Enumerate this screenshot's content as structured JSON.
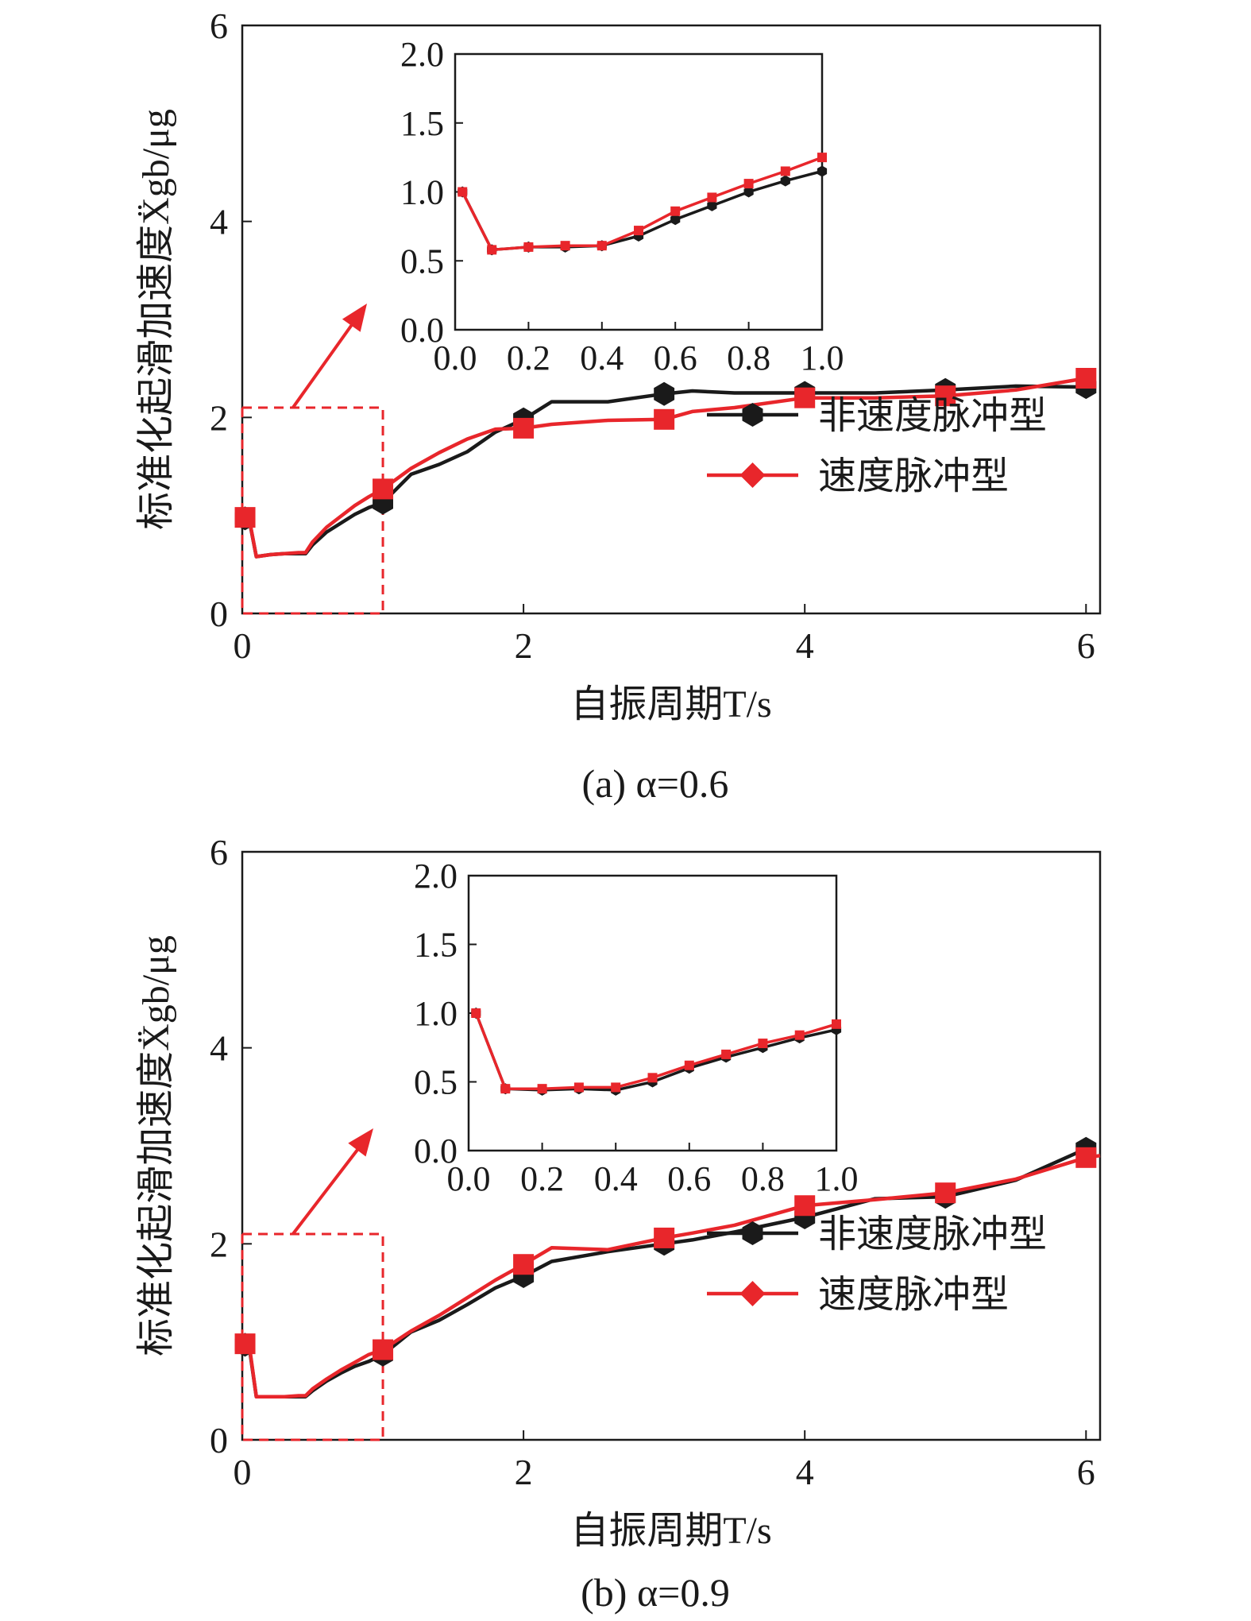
{
  "colors": {
    "nonpulse": "#1a1a1a",
    "pulse": "#e8262b",
    "frame": "#1a1a1a",
    "zoom": "#e8262b"
  },
  "chart_data": [
    {
      "type": "line",
      "caption": "(a) α=0.6",
      "xlabel": "自振周期T/s",
      "ylabel": "标准化起滑加速度Ẍgb/μg",
      "xlim": [
        0,
        6.1
      ],
      "ylim": [
        0,
        6
      ],
      "xticks": [
        "0",
        "2",
        "4",
        "6"
      ],
      "yticks": [
        "0",
        "2",
        "4",
        "6"
      ],
      "legend": {
        "position": "right-center",
        "entries": [
          "非速度脉冲型",
          "速度脉冲型"
        ]
      },
      "series": [
        {
          "name": "非速度脉冲型",
          "marker": "hexagon",
          "x": [
            0.02,
            0.05,
            0.1,
            0.2,
            0.3,
            0.4,
            0.45,
            0.5,
            0.6,
            0.7,
            0.8,
            0.9,
            1.0,
            1.2,
            1.4,
            1.6,
            1.8,
            2.0,
            2.2,
            2.6,
            3.0,
            3.2,
            3.5,
            4.0,
            4.5,
            5.0,
            5.5,
            6.0
          ],
          "y": [
            0.97,
            0.95,
            0.58,
            0.6,
            0.61,
            0.61,
            0.61,
            0.7,
            0.83,
            0.92,
            1.01,
            1.08,
            1.13,
            1.42,
            1.52,
            1.65,
            1.85,
            1.98,
            2.16,
            2.16,
            2.24,
            2.27,
            2.25,
            2.25,
            2.25,
            2.28,
            2.32,
            2.31
          ],
          "markers_x": [
            0.02,
            1.0,
            2.0,
            3.0,
            4.0,
            5.0,
            6.0
          ]
        },
        {
          "name": "速度脉冲型",
          "marker": "square",
          "x": [
            0.02,
            0.05,
            0.1,
            0.2,
            0.3,
            0.4,
            0.45,
            0.5,
            0.6,
            0.7,
            0.8,
            0.9,
            1.0,
            1.2,
            1.4,
            1.6,
            1.8,
            2.0,
            2.2,
            2.6,
            3.0,
            3.2,
            3.5,
            4.0,
            4.5,
            5.0,
            5.5,
            6.0
          ],
          "y": [
            0.98,
            0.96,
            0.58,
            0.6,
            0.61,
            0.62,
            0.62,
            0.73,
            0.88,
            0.99,
            1.1,
            1.19,
            1.27,
            1.48,
            1.64,
            1.78,
            1.88,
            1.89,
            1.93,
            1.97,
            1.98,
            2.06,
            2.1,
            2.2,
            2.2,
            2.22,
            2.28,
            2.4
          ],
          "markers_x": [
            0.02,
            1.0,
            2.0,
            3.0,
            4.0,
            5.0,
            6.0
          ]
        }
      ],
      "inset": {
        "xlim": [
          0,
          1.0
        ],
        "ylim": [
          0,
          2.0
        ],
        "xticks": [
          "0.0",
          "0.2",
          "0.4",
          "0.6",
          "0.8",
          "1.0"
        ],
        "yticks": [
          "0.0",
          "0.5",
          "1.0",
          "1.5",
          "2.0"
        ],
        "series": [
          {
            "name": "非速度脉冲型",
            "x": [
              0.02,
              0.1,
              0.2,
              0.3,
              0.4,
              0.5,
              0.6,
              0.7,
              0.8,
              0.9,
              1.0
            ],
            "y": [
              1.0,
              0.58,
              0.6,
              0.6,
              0.61,
              0.68,
              0.8,
              0.9,
              1.0,
              1.08,
              1.15
            ]
          },
          {
            "name": "速度脉冲型",
            "x": [
              0.02,
              0.1,
              0.2,
              0.3,
              0.4,
              0.5,
              0.6,
              0.7,
              0.8,
              0.9,
              1.0
            ],
            "y": [
              1.0,
              0.58,
              0.6,
              0.61,
              0.61,
              0.72,
              0.86,
              0.96,
              1.06,
              1.15,
              1.25
            ]
          }
        ]
      }
    },
    {
      "type": "line",
      "caption": "(b) α=0.9",
      "xlabel": "自振周期T/s",
      "ylabel": "标准化起滑加速度Ẍgb/μg",
      "xlim": [
        0,
        6.1
      ],
      "ylim": [
        0,
        6
      ],
      "xticks": [
        "0",
        "2",
        "4",
        "6"
      ],
      "yticks": [
        "0",
        "2",
        "4",
        "6"
      ],
      "legend": {
        "position": "right-center",
        "entries": [
          "非速度脉冲型",
          "速度脉冲型"
        ]
      },
      "series": [
        {
          "name": "非速度脉冲型",
          "marker": "hexagon",
          "x": [
            0.02,
            0.05,
            0.1,
            0.2,
            0.3,
            0.4,
            0.45,
            0.5,
            0.6,
            0.7,
            0.8,
            0.9,
            1.0,
            1.2,
            1.4,
            1.6,
            1.8,
            2.0,
            2.2,
            2.6,
            3.0,
            3.2,
            3.5,
            4.0,
            4.5,
            5.0,
            5.5,
            6.0
          ],
          "y": [
            0.97,
            0.94,
            0.44,
            0.44,
            0.44,
            0.44,
            0.44,
            0.5,
            0.6,
            0.68,
            0.75,
            0.8,
            0.87,
            1.1,
            1.22,
            1.38,
            1.55,
            1.67,
            1.82,
            1.92,
            2.0,
            2.04,
            2.12,
            2.27,
            2.46,
            2.48,
            2.65,
            2.97
          ],
          "markers_x": [
            0.02,
            1.0,
            2.0,
            3.0,
            4.0,
            5.0,
            6.0
          ]
        },
        {
          "name": "速度脉冲型",
          "marker": "square",
          "x": [
            0.02,
            0.05,
            0.1,
            0.2,
            0.3,
            0.4,
            0.45,
            0.5,
            0.6,
            0.7,
            0.8,
            0.9,
            1.0,
            1.2,
            1.4,
            1.6,
            1.8,
            2.0,
            2.2,
            2.6,
            3.0,
            3.2,
            3.5,
            4.0,
            4.5,
            5.0,
            5.5,
            6.0,
            6.1
          ],
          "y": [
            0.98,
            0.96,
            0.44,
            0.44,
            0.44,
            0.45,
            0.45,
            0.52,
            0.62,
            0.71,
            0.79,
            0.87,
            0.92,
            1.11,
            1.27,
            1.45,
            1.63,
            1.79,
            1.96,
            1.94,
            2.06,
            2.11,
            2.19,
            2.39,
            2.45,
            2.52,
            2.66,
            2.88,
            2.9
          ],
          "markers_x": [
            0.02,
            1.0,
            2.0,
            3.0,
            4.0,
            5.0,
            6.0
          ]
        }
      ],
      "inset": {
        "xlim": [
          0,
          1.0
        ],
        "ylim": [
          0,
          2.0
        ],
        "xticks": [
          "0.0",
          "0.2",
          "0.4",
          "0.6",
          "0.8",
          "1.0"
        ],
        "yticks": [
          "0.0",
          "0.5",
          "1.0",
          "1.5",
          "2.0"
        ],
        "series": [
          {
            "name": "非速度脉冲型",
            "x": [
              0.02,
              0.1,
              0.2,
              0.3,
              0.4,
              0.5,
              0.6,
              0.7,
              0.8,
              0.9,
              1.0
            ],
            "y": [
              1.0,
              0.45,
              0.44,
              0.45,
              0.44,
              0.5,
              0.6,
              0.68,
              0.75,
              0.82,
              0.88
            ]
          },
          {
            "name": "速度脉冲型",
            "x": [
              0.02,
              0.1,
              0.2,
              0.3,
              0.4,
              0.5,
              0.6,
              0.7,
              0.8,
              0.9,
              1.0
            ],
            "y": [
              1.0,
              0.45,
              0.45,
              0.46,
              0.46,
              0.53,
              0.62,
              0.7,
              0.78,
              0.84,
              0.92
            ]
          }
        ]
      }
    }
  ]
}
